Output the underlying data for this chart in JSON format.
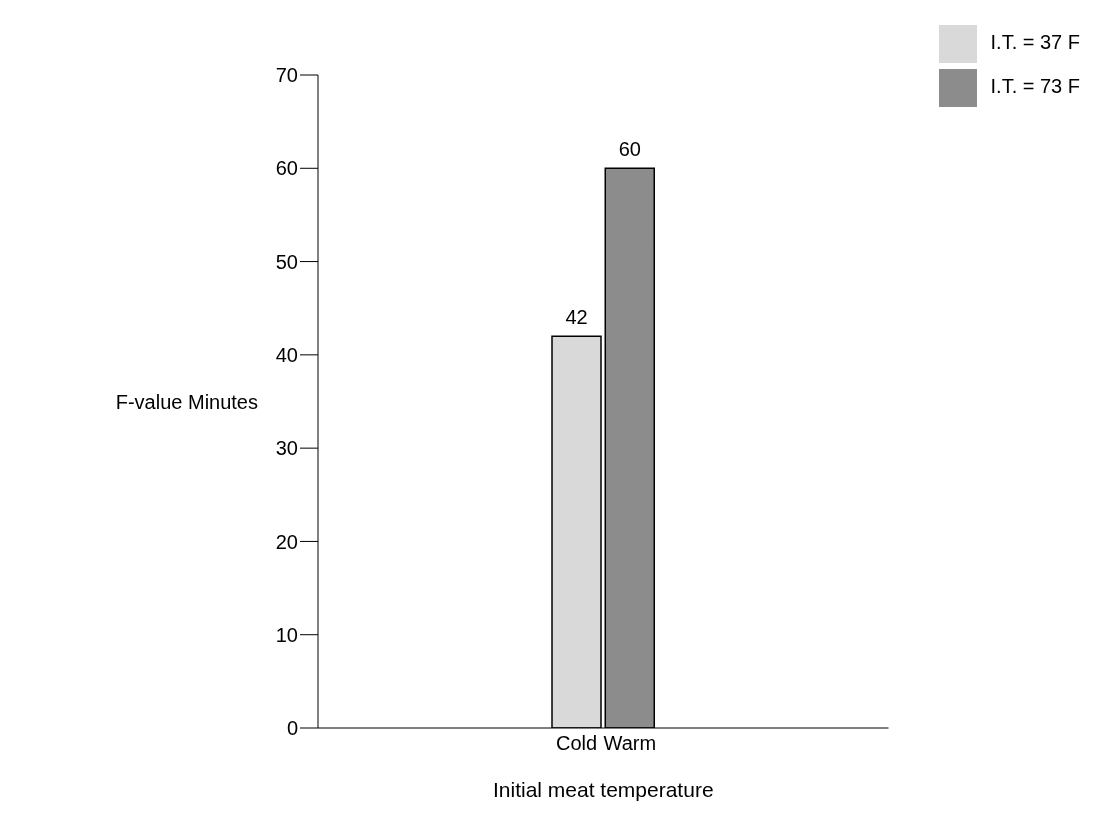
{
  "chart_data": {
    "type": "bar",
    "xlabel": "Initial meat temperature",
    "ylabel": "F-value Minutes",
    "categories": [
      "Cold",
      "Warm"
    ],
    "stacked": true,
    "series": [
      {
        "name": "I.T. = 37 F",
        "color": "#d9d9d9",
        "values": [
          42,
          null
        ]
      },
      {
        "name": "I.T. = 73 F",
        "color": "#8c8c8c",
        "values": [
          null,
          60
        ]
      }
    ],
    "ylim": [
      0,
      70
    ],
    "yticks": [
      0,
      10,
      20,
      30,
      40,
      50,
      60,
      70
    ],
    "data_labels": true,
    "legend": "top right"
  }
}
